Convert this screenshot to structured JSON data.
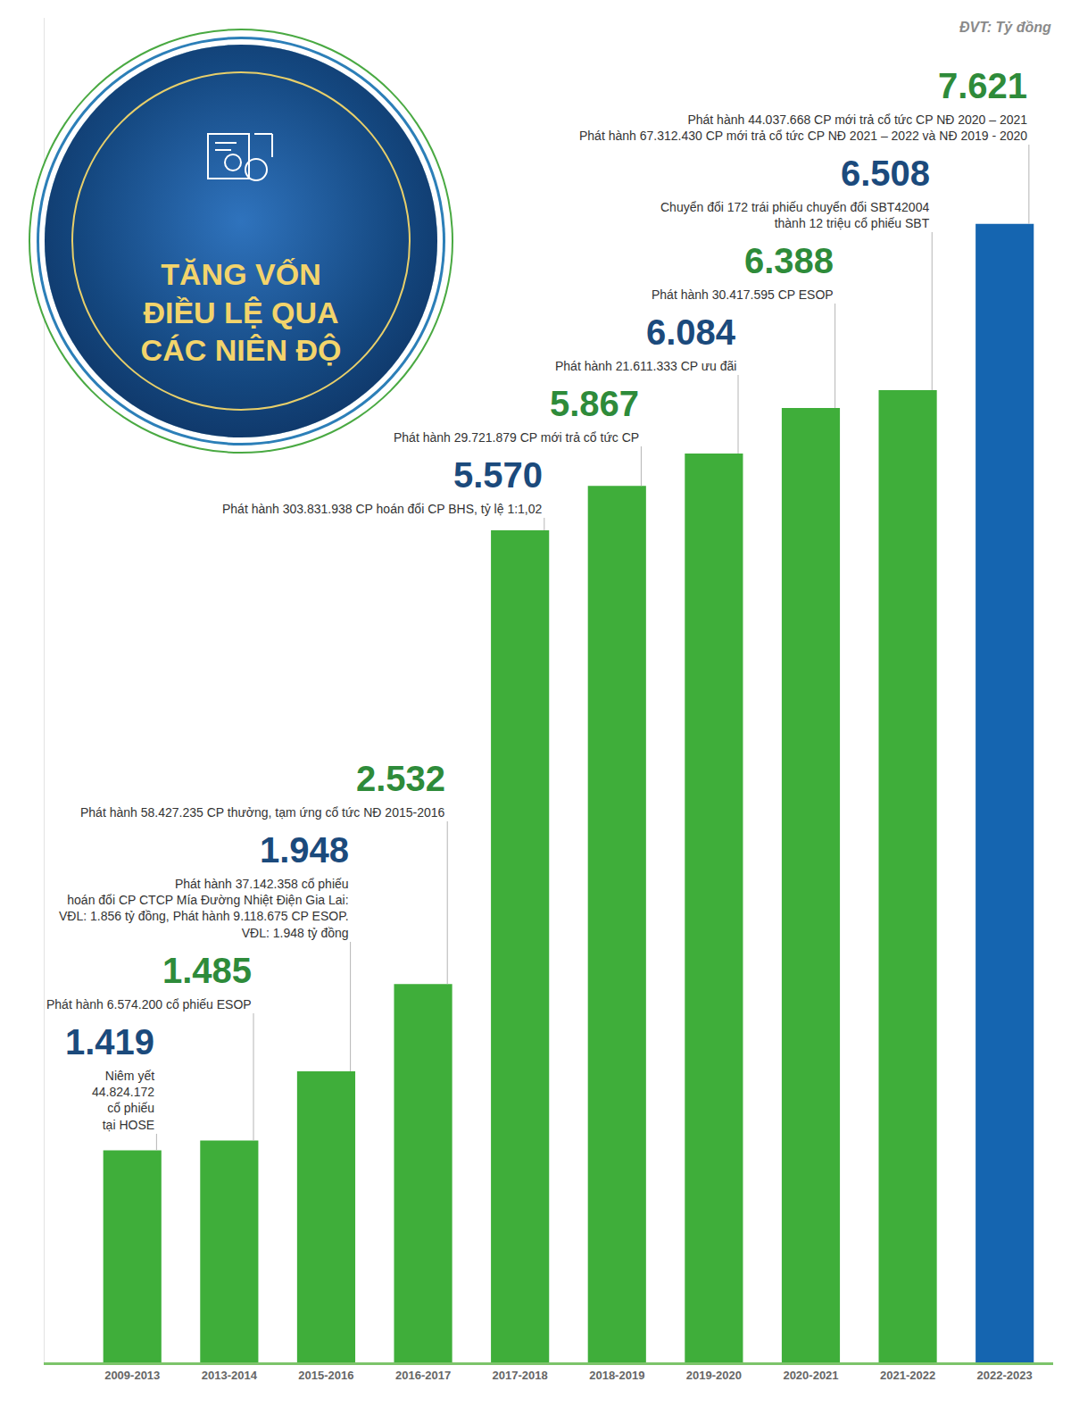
{
  "chart_data": {
    "type": "bar",
    "title": "TĂNG VỐN ĐIỀU LỆ QUA CÁC NIÊN ĐỘ",
    "subtitle": "ĐVT: Tỷ đồng",
    "categories": [
      "2009-2013",
      "2013-2014",
      "2015-2016",
      "2016-2017",
      "2017-2018",
      "2018-2019",
      "2019-2020",
      "2020-2021",
      "2021-2022",
      "2022-2023"
    ],
    "values": [
      1419,
      1485,
      1948,
      2532,
      5570,
      5867,
      6084,
      6388,
      6508,
      7621
    ],
    "value_labels": [
      "1.419",
      "1.485",
      "1.948",
      "2.532",
      "5.570",
      "5.867",
      "6.084",
      "6.388",
      "6.508",
      "7.621"
    ],
    "colors": [
      "#3fae3a",
      "#3fae3a",
      "#3fae3a",
      "#3fae3a",
      "#3fae3a",
      "#3fae3a",
      "#3fae3a",
      "#3fae3a",
      "#3fae3a",
      "#1565b0"
    ],
    "ylim": [
      0,
      9000
    ],
    "grid": false,
    "data_labels": true,
    "tick_labels": "x",
    "annotations": [
      {
        "category": "2009-2013",
        "text": [
          "Niêm yết",
          "44.824.172",
          "cổ phiếu",
          "tại HOSE"
        ]
      },
      {
        "category": "2013-2014",
        "text": [
          "Phát hành 6.574.200 cổ phiếu ESOP"
        ]
      },
      {
        "category": "2015-2016",
        "text": [
          "Phát hành 37.142.358 cổ phiếu",
          "hoán đổi CP CTCP Mía Đường Nhiệt Điện Gia Lai:",
          "VĐL: 1.856 tỷ đồng, Phát hành 9.118.675 CP ESOP.",
          "VĐL: 1.948 tỷ đồng"
        ]
      },
      {
        "category": "2016-2017",
        "text": [
          "Phát hành 58.427.235 CP thưởng, tạm ứng cổ tức NĐ 2015-2016"
        ]
      },
      {
        "category": "2017-2018",
        "text": [
          "Phát hành 303.831.938 CP hoán đổi CP BHS, tỷ lệ 1:1,02"
        ]
      },
      {
        "category": "2018-2019",
        "text": [
          "Phát hành 29.721.879 CP mới trả cổ tức CP"
        ]
      },
      {
        "category": "2019-2020",
        "text": [
          "Phát hành 21.611.333 CP ưu đãi"
        ]
      },
      {
        "category": "2020-2021",
        "text": [
          "Phát hành 30.417.595 CP ESOP"
        ]
      },
      {
        "category": "2021-2022",
        "text": [
          "Chuyển đổi 172 trái phiếu chuyển đổi SBT42004",
          "thành 12 triệu cổ phiếu SBT"
        ]
      },
      {
        "category": "2022-2023",
        "text": [
          "Phát hành 44.037.668 CP mới trả cổ tức CP NĐ 2020 – 2021",
          "Phát hành 67.312.430 CP mới trả cổ tức CP NĐ 2021 – 2022 và NĐ 2019 - 2020"
        ]
      }
    ]
  }
}
